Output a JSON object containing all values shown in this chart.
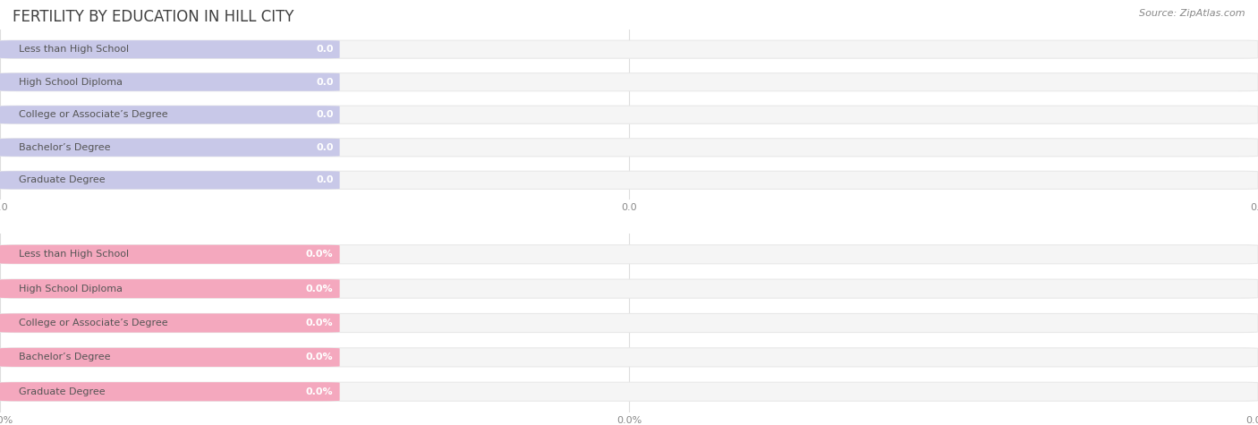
{
  "title": "FERTILITY BY EDUCATION IN HILL CITY",
  "source": "Source: ZipAtlas.com",
  "categories": [
    "Less than High School",
    "High School Diploma",
    "College or Associate’s Degree",
    "Bachelor’s Degree",
    "Graduate Degree"
  ],
  "top_values": [
    0.0,
    0.0,
    0.0,
    0.0,
    0.0
  ],
  "bottom_values": [
    0.0,
    0.0,
    0.0,
    0.0,
    0.0
  ],
  "top_bar_fill": "#c8c8e8",
  "top_bar_border": "#aaaacc",
  "bottom_bar_fill": "#f4a8be",
  "bottom_bar_border": "#e07898",
  "bar_bg_color": "#f2f2f2",
  "bar_bg_border": "#e0e0e0",
  "background_color": "#ffffff",
  "title_color": "#404040",
  "label_color": "#555555",
  "tick_color": "#888888",
  "source_color": "#888888",
  "figsize": [
    14.06,
    4.75
  ],
  "dpi": 100,
  "title_fontsize": 12,
  "label_fontsize": 8,
  "value_fontsize": 8,
  "tick_fontsize": 8,
  "source_fontsize": 8
}
